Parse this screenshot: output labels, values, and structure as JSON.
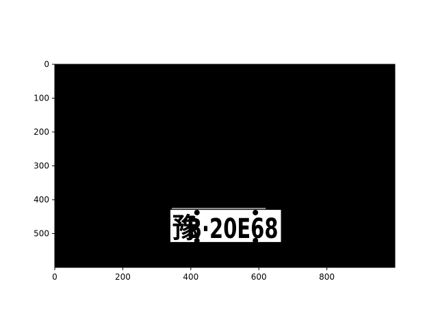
{
  "chart_data": {
    "type": "image",
    "title": "",
    "xlabel": "",
    "ylabel": "",
    "image": {
      "width": 1000,
      "height": 600,
      "background": "#000000",
      "description_visible": "binary image, black background with white license plate region"
    },
    "xlim": [
      0,
      1000
    ],
    "ylim": [
      600,
      0
    ],
    "x_ticks": [
      {
        "value": 0,
        "label": "0"
      },
      {
        "value": 200,
        "label": "200"
      },
      {
        "value": 400,
        "label": "400"
      },
      {
        "value": 600,
        "label": "600"
      },
      {
        "value": 800,
        "label": "800"
      }
    ],
    "y_ticks": [
      {
        "value": 0,
        "label": "0"
      },
      {
        "value": 100,
        "label": "100"
      },
      {
        "value": 200,
        "label": "200"
      },
      {
        "value": 300,
        "label": "300"
      },
      {
        "value": 400,
        "label": "400"
      },
      {
        "value": 500,
        "label": "500"
      }
    ],
    "plate": {
      "x0": 340,
      "y0": 430,
      "x1": 665,
      "y1": 525,
      "color": "#ffffff",
      "text_char": "豫",
      "text_main": "B·20E68"
    },
    "colors": {
      "background": "#000000",
      "foreground": "#ffffff",
      "axis": "#000000"
    }
  }
}
